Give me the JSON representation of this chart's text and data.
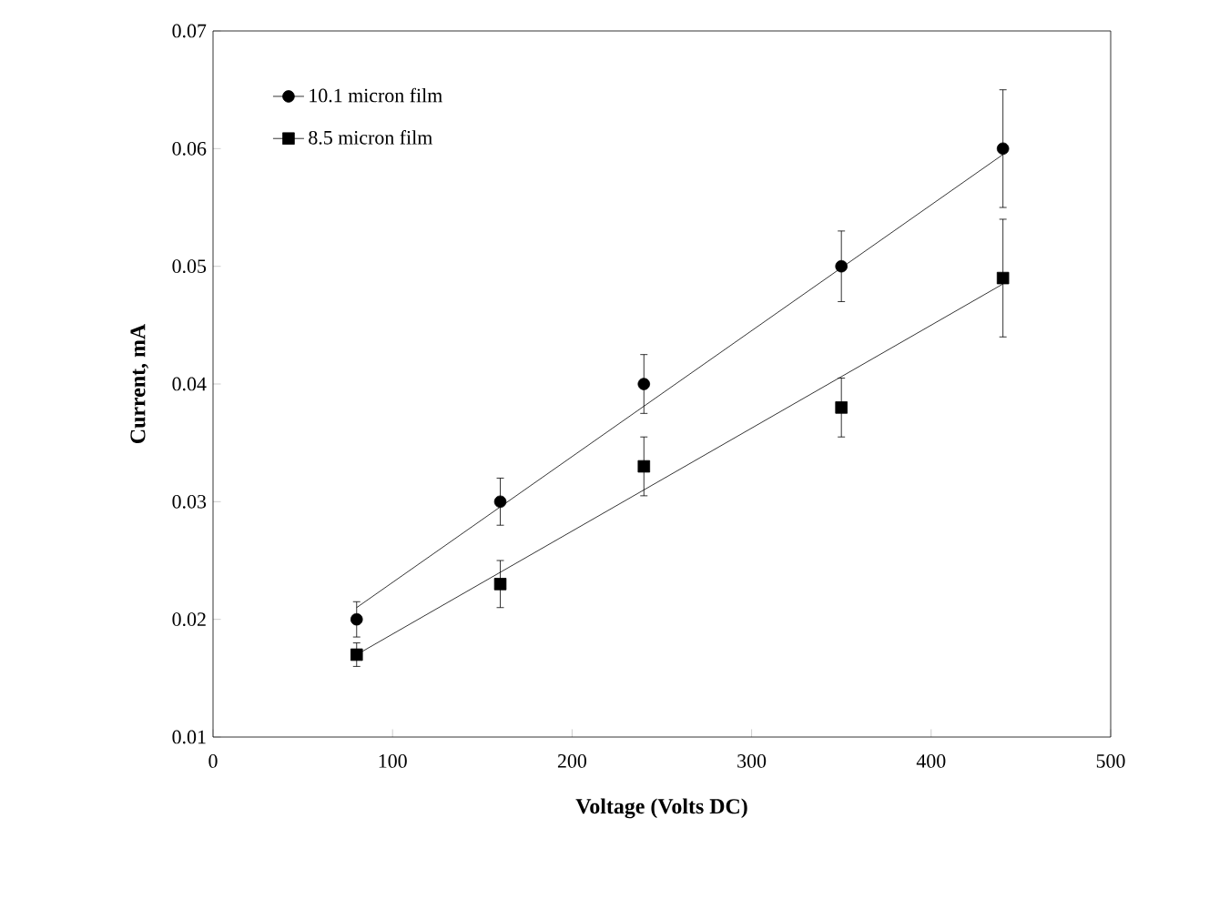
{
  "chart_data": {
    "type": "scatter",
    "xlabel": "Voltage  (Volts  DC)",
    "ylabel": "Current, mA",
    "xlim": [
      0,
      500
    ],
    "xticks": [
      0,
      100,
      200,
      300,
      400,
      500
    ],
    "ylim": [
      0.01,
      0.07
    ],
    "yticks": [
      0.01,
      0.02,
      0.03,
      0.04,
      0.05,
      0.06,
      0.07
    ],
    "legend": "top left",
    "grid": false,
    "series": [
      {
        "name": "10.1 micron film",
        "color": "#000000",
        "marker": "circle",
        "x": [
          80,
          160,
          240,
          350,
          440
        ],
        "values": [
          0.02,
          0.03,
          0.04,
          0.05,
          0.06
        ],
        "errors": [
          0.0015,
          0.002,
          0.0025,
          0.003,
          0.005
        ]
      },
      {
        "name": "8.5 micron film",
        "color": "#000000",
        "marker": "square",
        "x": [
          80,
          160,
          240,
          350,
          440
        ],
        "values": [
          0.017,
          0.023,
          0.033,
          0.038,
          0.049
        ],
        "errors": [
          0.001,
          0.002,
          0.0025,
          0.0025,
          0.005
        ]
      },
      {
        "type": "line",
        "color": "#000000",
        "marker": "none",
        "x": [
          80,
          440
        ],
        "values": [
          0.021,
          0.0595
        ]
      },
      {
        "type": "line",
        "color": "#000000",
        "marker": "none",
        "x": [
          80,
          440
        ],
        "values": [
          0.017,
          0.0485
        ]
      }
    ]
  }
}
